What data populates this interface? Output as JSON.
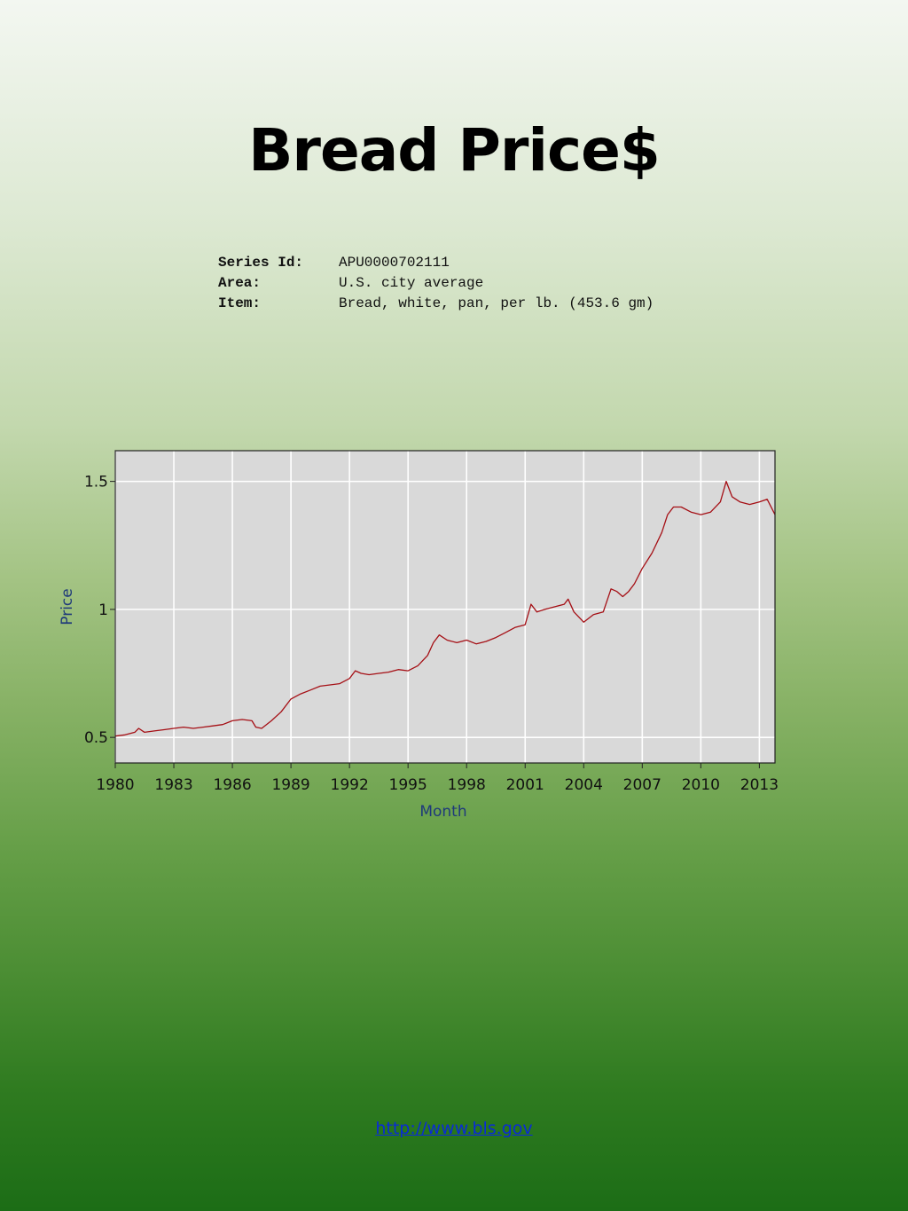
{
  "slide": {
    "title": "Bread Price$",
    "link_text": "http://www.bls.gov"
  },
  "series_info": [
    {
      "label": "Series Id:",
      "value": "APU0000702111"
    },
    {
      "label": "Area:",
      "value": "U.S. city average"
    },
    {
      "label": "Item:",
      "value": "Bread, white, pan, per lb. (453.6 gm)"
    }
  ],
  "chart_data": {
    "type": "line",
    "xlabel": "Month",
    "ylabel": "Price",
    "xlim": [
      1980.0,
      2013.8
    ],
    "ylim": [
      0.4,
      1.62
    ],
    "x_ticks": [
      {
        "value": 1980,
        "label": "1980"
      },
      {
        "value": 1983,
        "label": "1983"
      },
      {
        "value": 1986,
        "label": "1986"
      },
      {
        "value": 1989,
        "label": "1989"
      },
      {
        "value": 1992,
        "label": "1992"
      },
      {
        "value": 1995,
        "label": "1995"
      },
      {
        "value": 1998,
        "label": "1998"
      },
      {
        "value": 2001,
        "label": "2001"
      },
      {
        "value": 2004,
        "label": "2004"
      },
      {
        "value": 2007,
        "label": "2007"
      },
      {
        "value": 2010,
        "label": "2010"
      },
      {
        "value": 2013,
        "label": "2013"
      }
    ],
    "y_ticks": [
      {
        "value": 0.5,
        "label": "0.5"
      },
      {
        "value": 1,
        "label": "1"
      },
      {
        "value": 1.5,
        "label": "1.5"
      }
    ],
    "grid": true,
    "line_color": "#a50f15",
    "plot_background": "#d9d9d9",
    "series": [
      {
        "x": [
          1980.0,
          1980.5,
          1981.0,
          1981.2,
          1981.5,
          1982.0,
          1982.5,
          1983.0,
          1983.5,
          1984.0,
          1984.5,
          1985.0,
          1985.5,
          1986.0,
          1986.5,
          1987.0,
          1987.2,
          1987.5,
          1988.0,
          1988.5,
          1989.0,
          1989.5,
          1990.0,
          1990.5,
          1991.0,
          1991.5,
          1992.0,
          1992.3,
          1992.6,
          1993.0,
          1993.5,
          1994.0,
          1994.5,
          1995.0,
          1995.5,
          1996.0,
          1996.3,
          1996.6,
          1997.0,
          1997.5,
          1998.0,
          1998.5,
          1999.0,
          1999.5,
          2000.0,
          2000.5,
          2001.0,
          2001.3,
          2001.6,
          2002.0,
          2002.5,
          2003.0,
          2003.2,
          2003.5,
          2004.0,
          2004.5,
          2005.0,
          2005.4,
          2005.7,
          2006.0,
          2006.3,
          2006.6,
          2007.0,
          2007.5,
          2008.0,
          2008.3,
          2008.6,
          2009.0,
          2009.5,
          2010.0,
          2010.5,
          2011.0,
          2011.3,
          2011.6,
          2012.0,
          2012.5,
          2013.0,
          2013.4,
          2013.8
        ],
        "y": [
          0.505,
          0.51,
          0.52,
          0.535,
          0.52,
          0.525,
          0.53,
          0.535,
          0.54,
          0.535,
          0.54,
          0.545,
          0.55,
          0.565,
          0.57,
          0.565,
          0.54,
          0.535,
          0.565,
          0.6,
          0.65,
          0.67,
          0.685,
          0.7,
          0.705,
          0.71,
          0.73,
          0.76,
          0.75,
          0.745,
          0.75,
          0.755,
          0.765,
          0.76,
          0.78,
          0.82,
          0.87,
          0.9,
          0.88,
          0.87,
          0.88,
          0.865,
          0.875,
          0.89,
          0.91,
          0.93,
          0.94,
          1.02,
          0.99,
          1.0,
          1.01,
          1.02,
          1.04,
          0.99,
          0.95,
          0.98,
          0.99,
          1.08,
          1.07,
          1.05,
          1.07,
          1.1,
          1.16,
          1.22,
          1.3,
          1.37,
          1.4,
          1.4,
          1.38,
          1.37,
          1.38,
          1.42,
          1.5,
          1.44,
          1.42,
          1.41,
          1.42,
          1.43,
          1.37
        ]
      }
    ]
  }
}
